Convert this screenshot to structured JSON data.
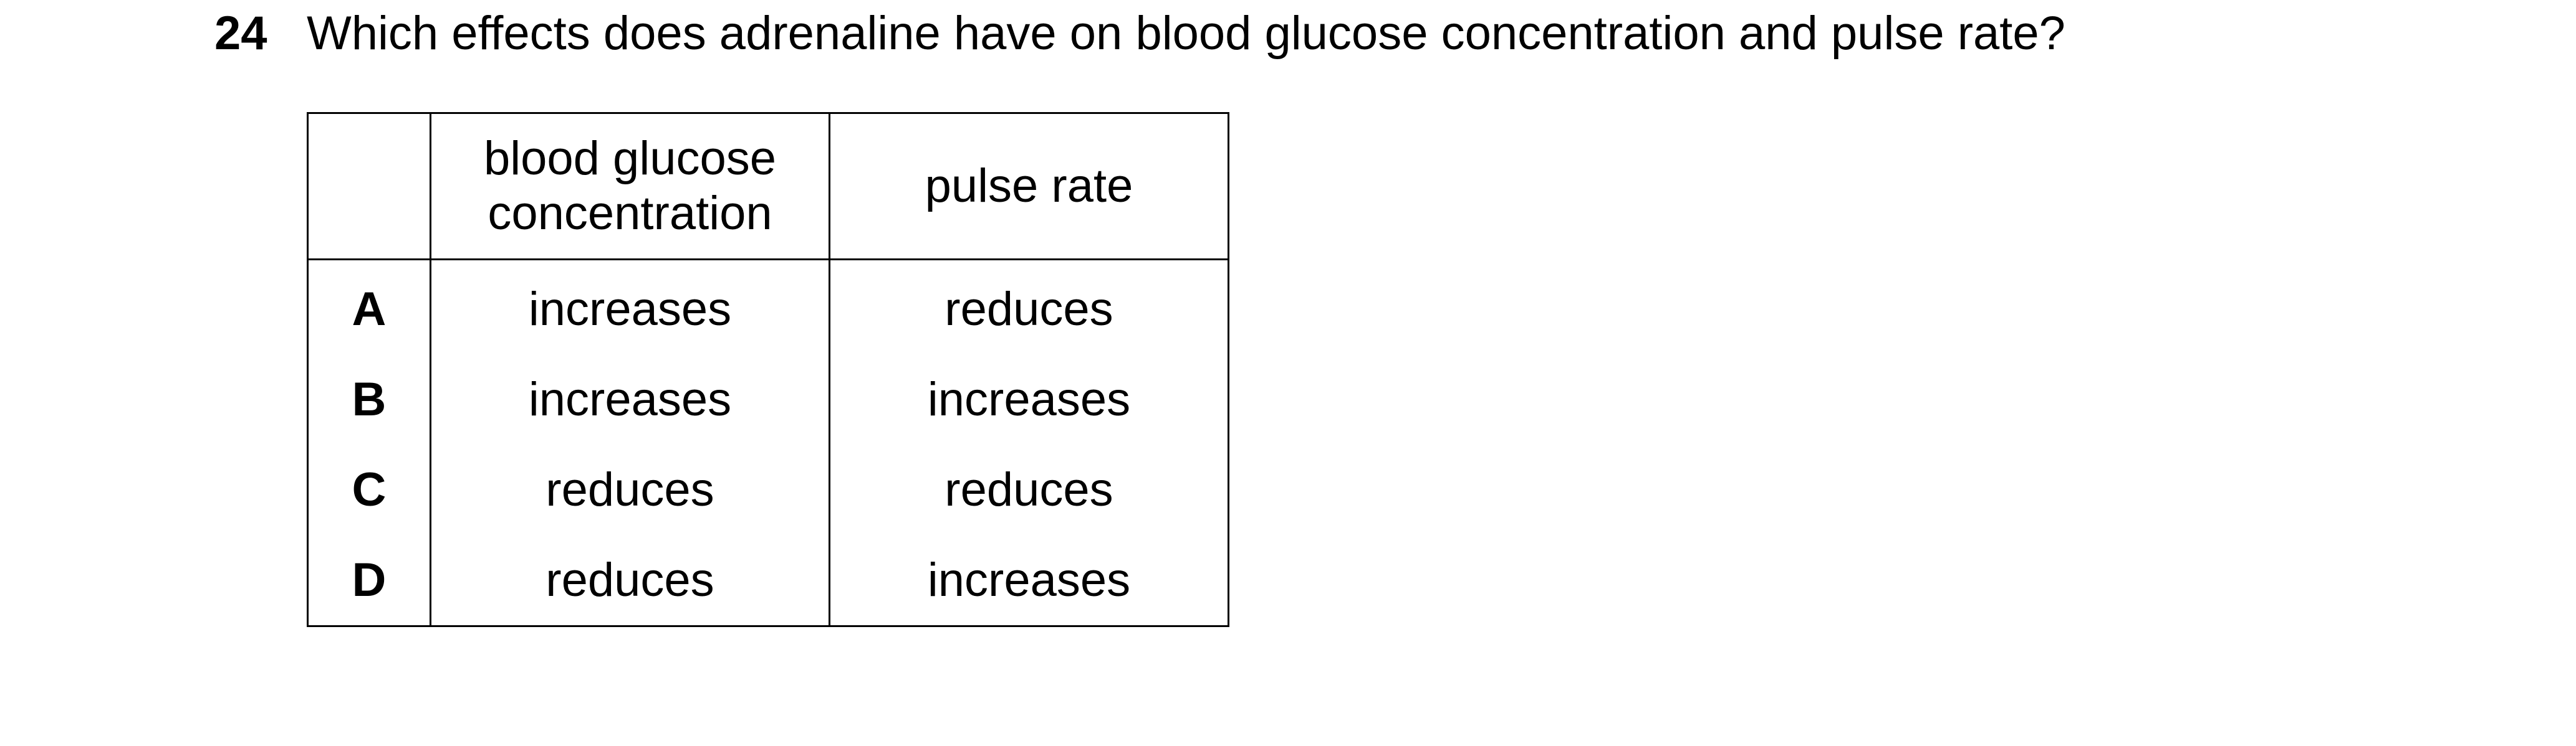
{
  "question": {
    "number": "24",
    "text": "Which effects does adrenaline have on blood glucose concentration and pulse rate?"
  },
  "table": {
    "headers": {
      "letter": "",
      "glucose_line1": "blood glucose",
      "glucose_line2": "concentration",
      "pulse": "pulse rate"
    },
    "rows": [
      {
        "letter": "A",
        "glucose": "increases",
        "pulse": "reduces"
      },
      {
        "letter": "B",
        "glucose": "increases",
        "pulse": "increases"
      },
      {
        "letter": "C",
        "glucose": "reduces",
        "pulse": "reduces"
      },
      {
        "letter": "D",
        "glucose": "reduces",
        "pulse": "increases"
      }
    ]
  }
}
